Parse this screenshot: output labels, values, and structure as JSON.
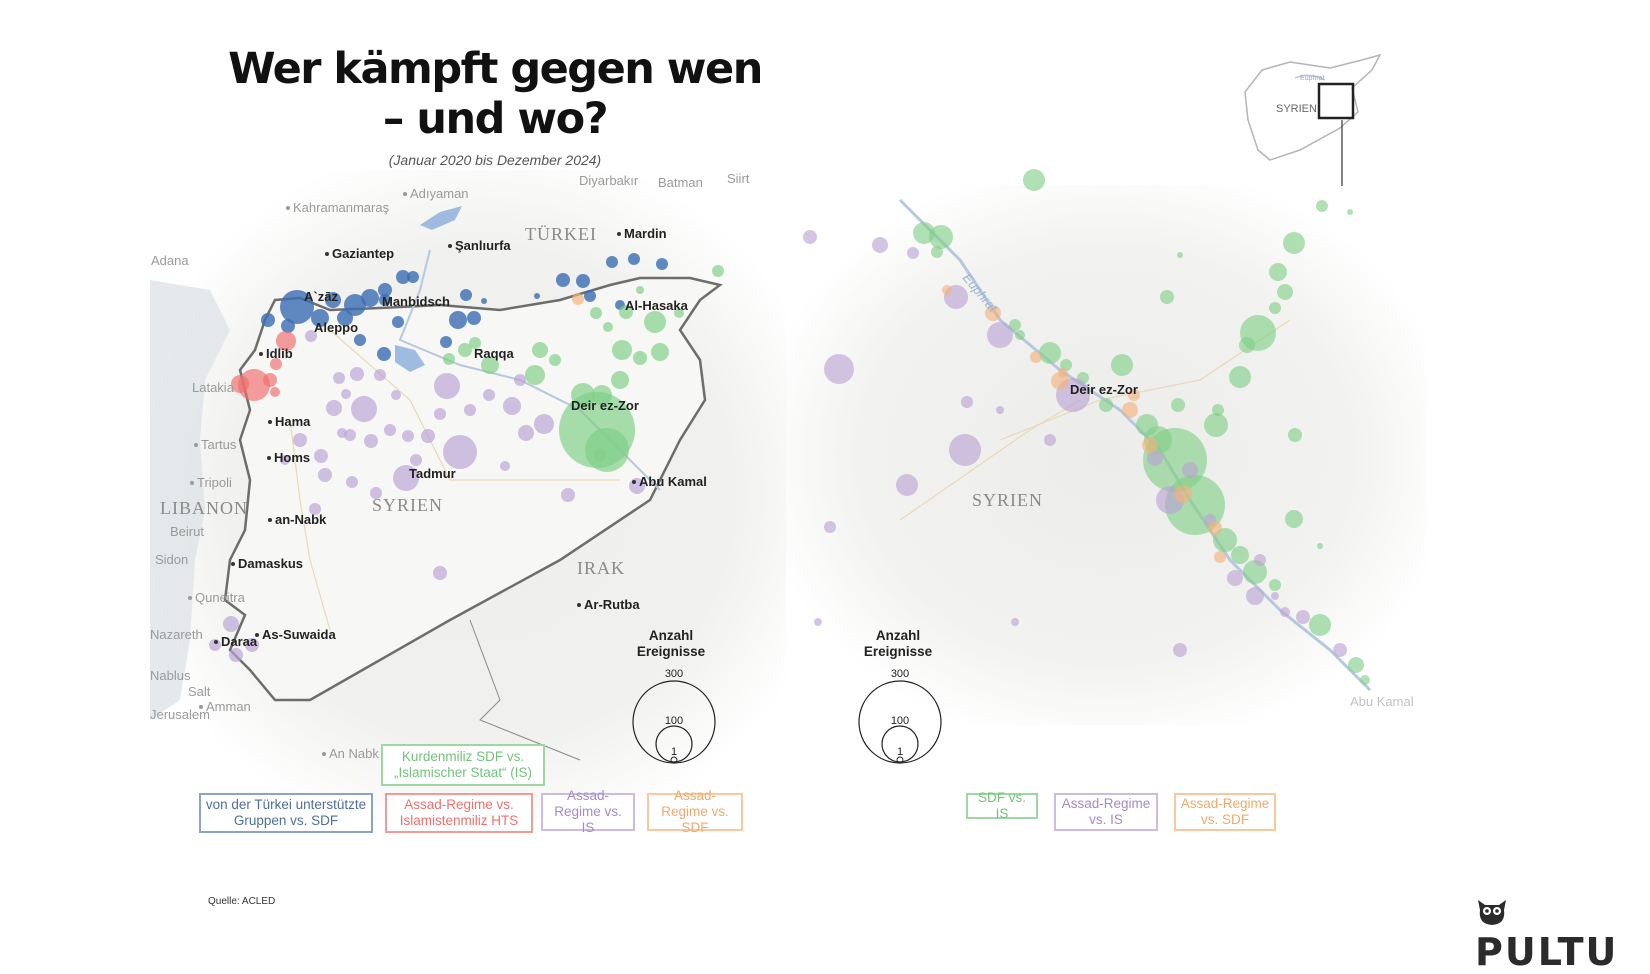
{
  "title": {
    "line1": "Wer kämpft gegen wen",
    "line2": "– und wo?"
  },
  "subtitle": "(Januar 2020 bis Dezember 2024)",
  "source": "Quelle: ACLED",
  "brand": "PULTU",
  "colors": {
    "turkey_vs_sdf": "#3d6fb5",
    "assad_vs_hts": "#ef6f6f",
    "assad_vs_is": "#b9a2d4",
    "assad_vs_sdf": "#f4b27a",
    "sdf_vs_is": "#7fcf86"
  },
  "left_map": {
    "places": [
      "Kahramanmaraş",
      "Adıyaman",
      "Diyarbakır",
      "Batman",
      "Siirt",
      "Gaziantep",
      "Şanlıurfa",
      "Mardin",
      "Adana",
      "A`zāz",
      "Manbidsch",
      "Al-Hasaka",
      "Aleppo",
      "Idlib",
      "Raqqa",
      "Latakia",
      "Deir ez-Zor",
      "Hama",
      "Tartus",
      "Homs",
      "Tadmur",
      "Tripoli",
      "Abu Kamal",
      "Beirut",
      "an-Nabk",
      "Sidon",
      "Damaskus",
      "Quneitra",
      "Ar-Rutba",
      "Nazareth",
      "Daraa",
      "As-Suwaida",
      "Nablus",
      "Salt",
      "Amman",
      "Jerusalem",
      "An Nabk"
    ],
    "countries": [
      "TÜRKEI",
      "SYRIEN",
      "LIBANON",
      "IRAK"
    ],
    "size_legend": {
      "title_line1": "Anzahl",
      "title_line2": "Ereignisse",
      "values": [
        "300",
        "100",
        "1"
      ]
    },
    "legend": [
      {
        "label": "Kurdenmiliz SDF vs. „Islamischer Staat“ (IS)",
        "color_key": "sdf_vs_is"
      },
      {
        "label": "von der Türkei unterstützte Gruppen vs. SDF",
        "color_key": "turkey_vs_sdf"
      },
      {
        "label": "Assad-Regime vs. Islamistenmiliz HTS",
        "color_key": "assad_vs_hts"
      },
      {
        "label": "Assad-Regime vs. IS",
        "color_key": "assad_vs_is"
      },
      {
        "label": "Assad-Regime vs. SDF",
        "color_key": "assad_vs_sdf"
      }
    ]
  },
  "right_map": {
    "inset_label": "SYRIEN",
    "inset_river": "Euphrat",
    "places": [
      "Deir ez-Zor",
      "Abu Kamal"
    ],
    "river": "Euphrat",
    "country": "SYRIEN",
    "size_legend": {
      "title_line1": "Anzahl",
      "title_line2": "Ereignisse",
      "values": [
        "300",
        "100",
        "1"
      ]
    },
    "legend": [
      {
        "label": "SDF vs. IS",
        "color_key": "sdf_vs_is"
      },
      {
        "label": "Assad-Regime vs. IS",
        "color_key": "assad_vs_is"
      },
      {
        "label": "Assad-Regime vs. SDF",
        "color_key": "assad_vs_sdf"
      }
    ]
  }
}
